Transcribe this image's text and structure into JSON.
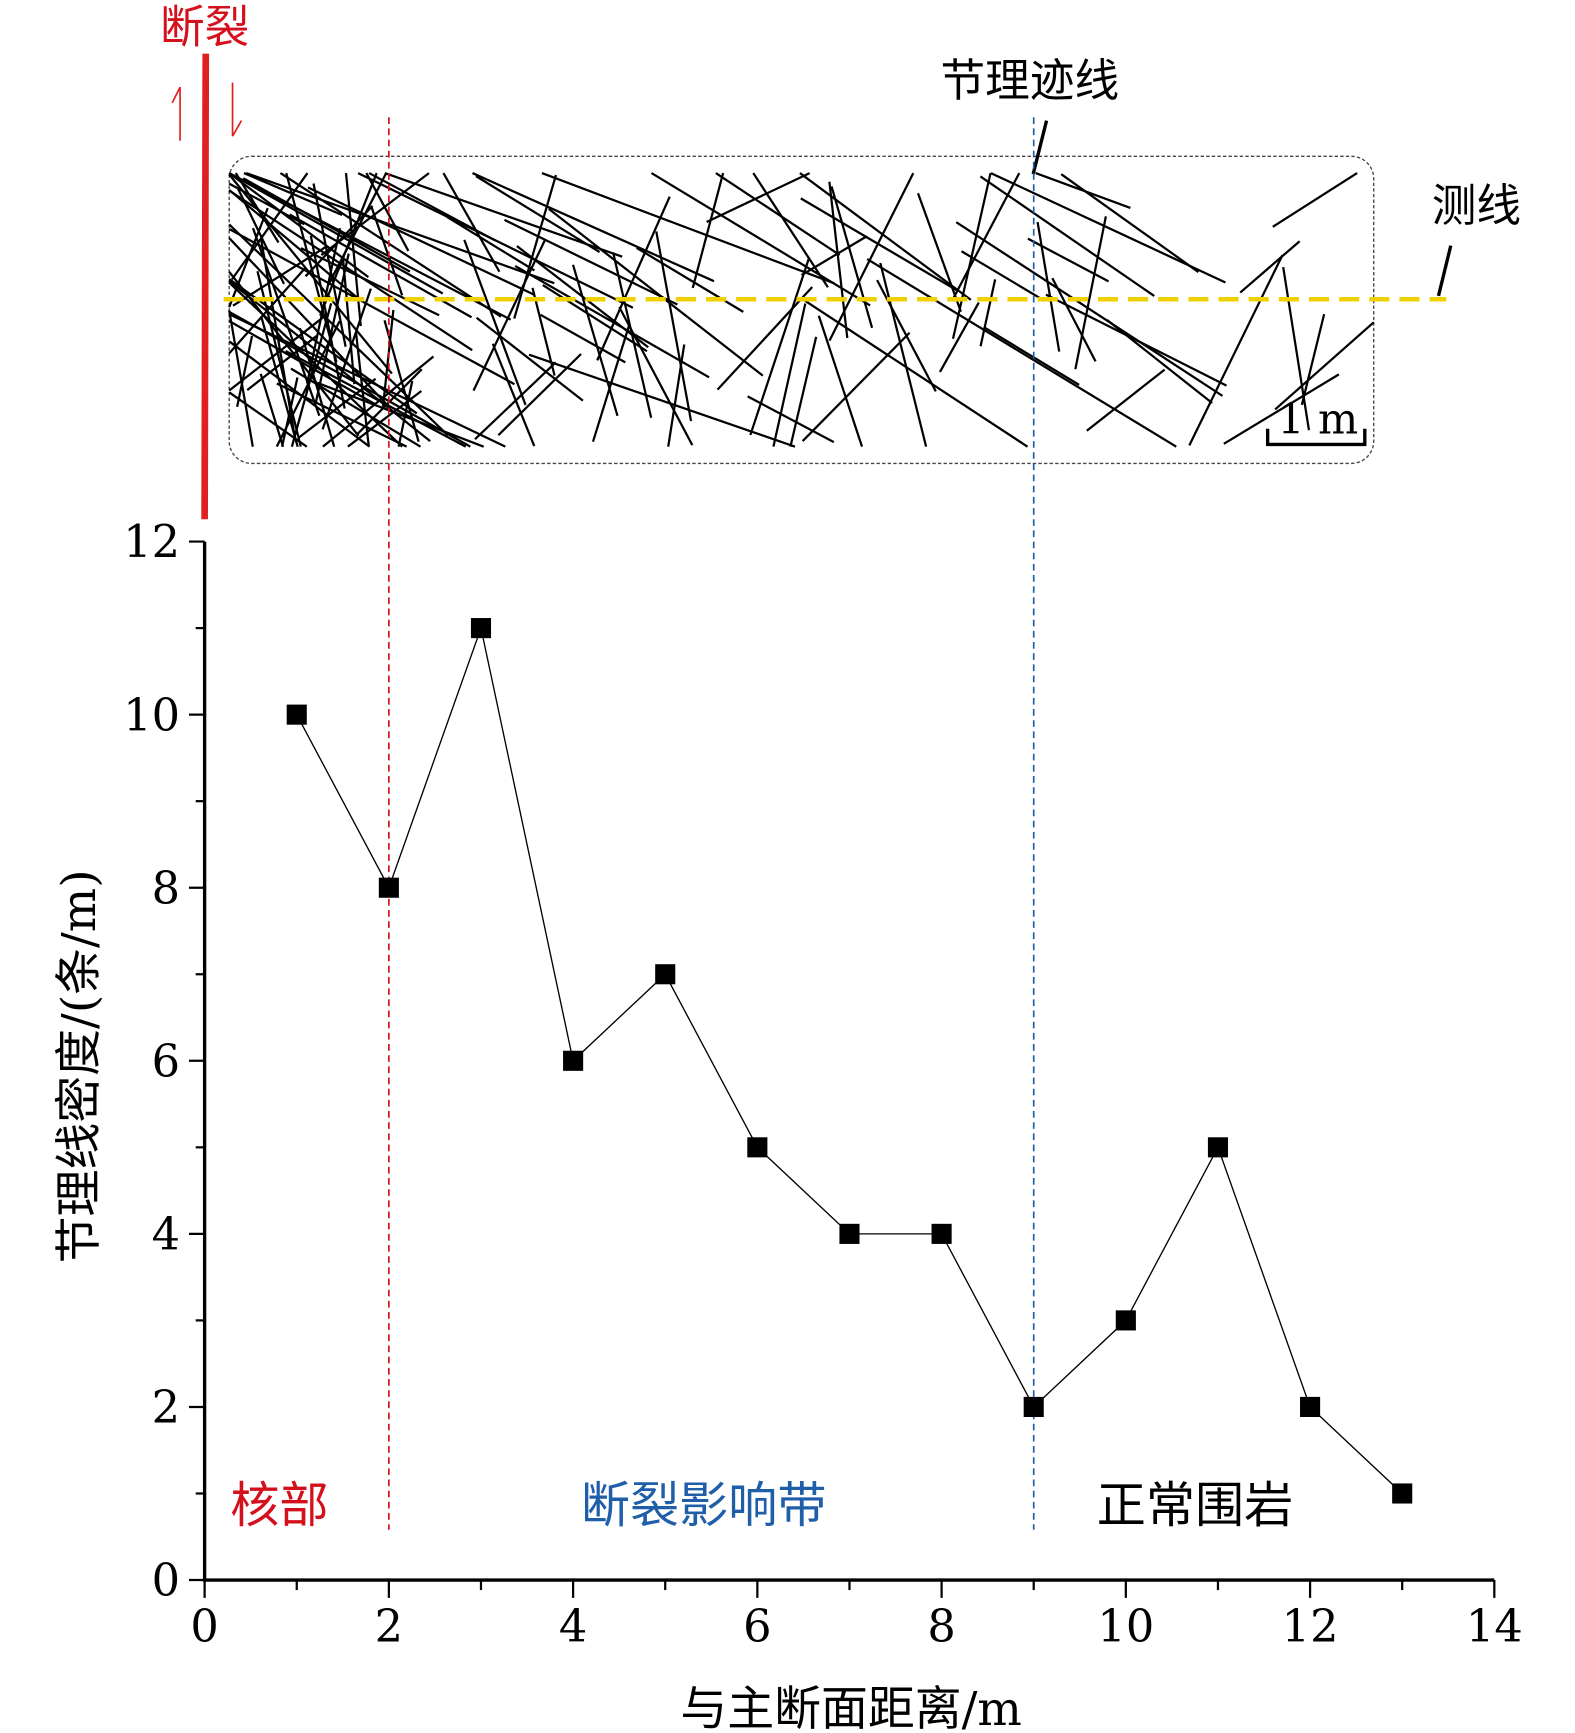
{
  "diagram": {
    "fault_label": "断裂",
    "joint_trace_label": "节理迹线",
    "survey_line_label": "测线",
    "scale_label": "1 m",
    "arrow_up": "↿",
    "arrow_down": "⇂"
  },
  "zones": {
    "core": "核部",
    "damage_zone": "断裂影响带",
    "host_rock": "正常围岩"
  },
  "colors": {
    "fault": "#e02020",
    "core": "#d4101c",
    "damage": "#1f5ea8",
    "survey": "#f0d000",
    "line": "#000000"
  },
  "chart_data": {
    "type": "line",
    "title": "",
    "xlabel": "与主断面距离/m",
    "ylabel": "节理线密度/(条/m)",
    "x": [
      1,
      2,
      3,
      4,
      5,
      6,
      7,
      8,
      9,
      10,
      11,
      12,
      13
    ],
    "y": [
      10,
      8,
      11,
      6,
      7,
      5,
      4,
      4,
      2,
      3,
      5,
      2,
      1
    ],
    "xlim": [
      0,
      14
    ],
    "ylim": [
      0,
      12
    ],
    "xticks": [
      "0",
      "2",
      "4",
      "6",
      "8",
      "10",
      "12",
      "14"
    ],
    "yticks": [
      "0",
      "2",
      "4",
      "6",
      "8",
      "10",
      "12"
    ],
    "boundaries": [
      2,
      9
    ],
    "marker": "square",
    "grid": false
  }
}
